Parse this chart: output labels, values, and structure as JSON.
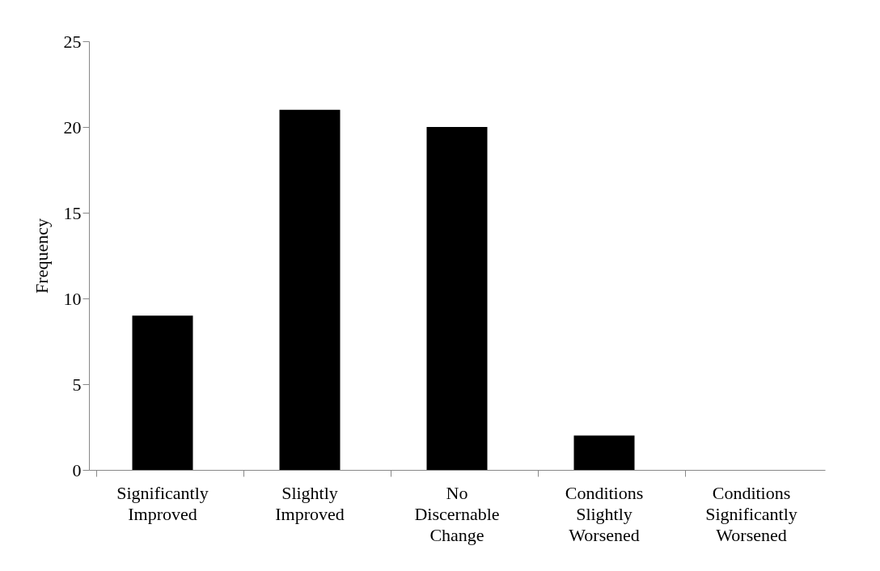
{
  "chart_data": {
    "type": "bar",
    "ylabel": "Frequency",
    "categories": [
      "Significantly Improved",
      "Slightly Improved",
      "No Discernable Change",
      "Conditions Slightly Worsened",
      "Conditions Significantly Worsened"
    ],
    "values": [
      9,
      21,
      20,
      2,
      0
    ],
    "color": "#000000",
    "ylim": [
      0,
      25
    ],
    "yticks": [
      0,
      5,
      10,
      15,
      20,
      25
    ],
    "grid": false
  }
}
